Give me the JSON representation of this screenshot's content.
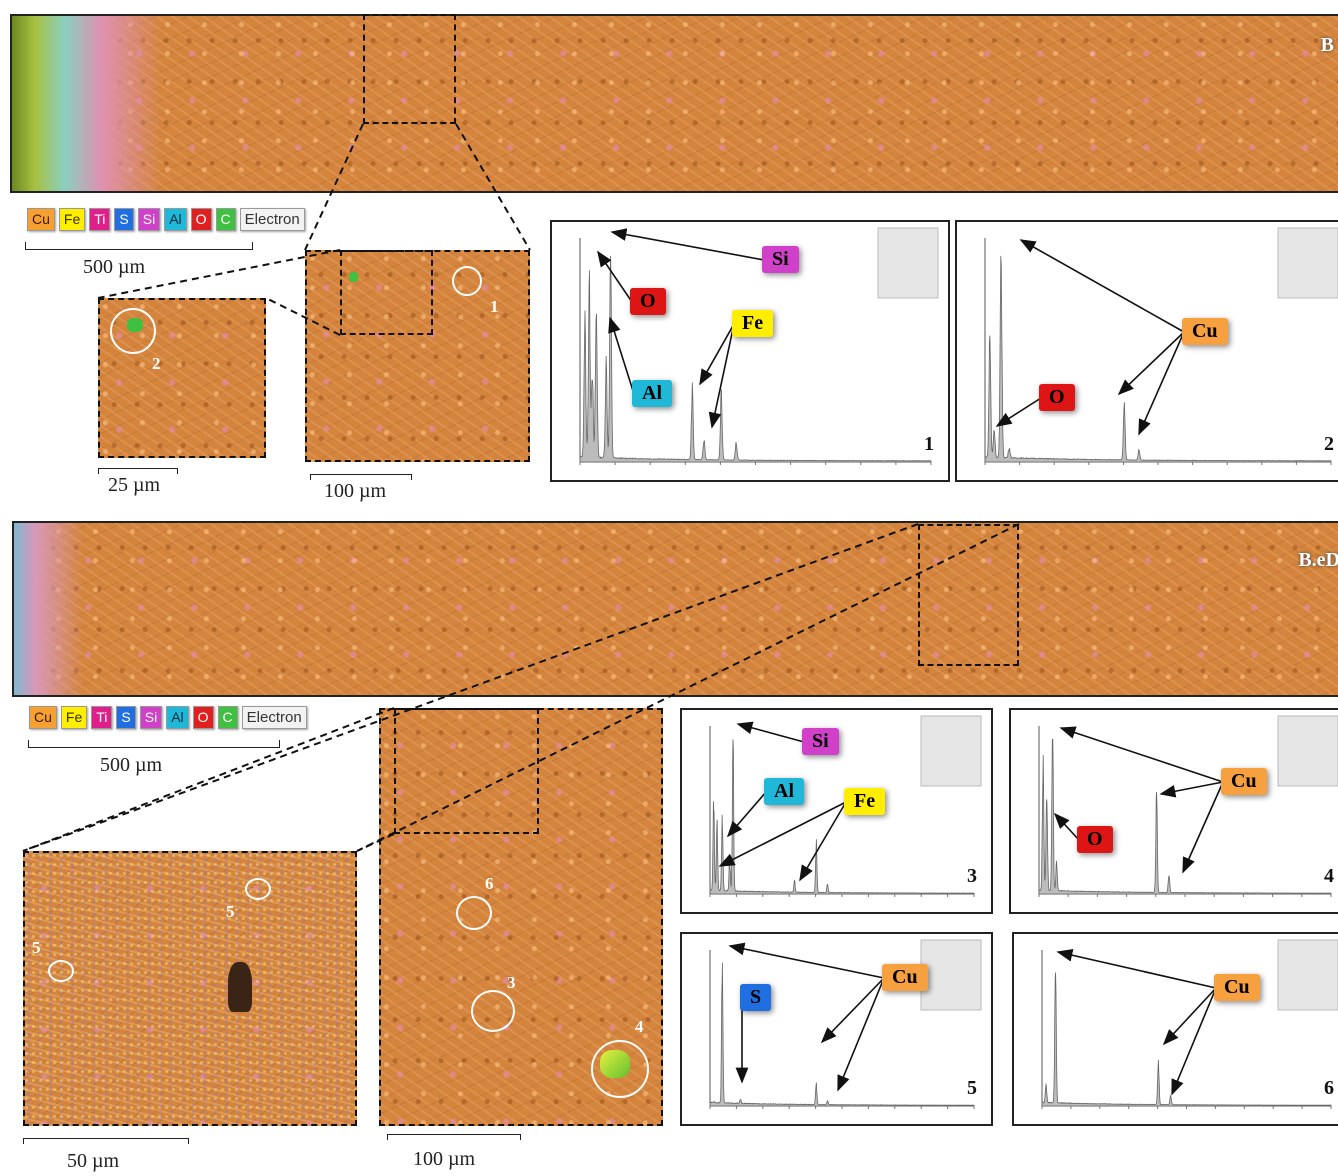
{
  "top": {
    "sample_label": "B",
    "legend": [
      {
        "el": "Cu",
        "bg": "#f5a030",
        "fg": "#3a1800"
      },
      {
        "el": "Fe",
        "bg": "#ffee00",
        "fg": "#3a3000"
      },
      {
        "el": "Ti",
        "bg": "#e0208a",
        "fg": "#ffffff"
      },
      {
        "el": "S",
        "bg": "#1f6fe0",
        "fg": "#ffffff"
      },
      {
        "el": "Si",
        "bg": "#d040c8",
        "fg": "#ffffff"
      },
      {
        "el": "Al",
        "bg": "#20b8d8",
        "fg": "#0a2a38"
      },
      {
        "el": "O",
        "bg": "#e02020",
        "fg": "#ffffff"
      },
      {
        "el": "C",
        "bg": "#40c040",
        "fg": "#ffffff"
      }
    ],
    "electron_label": "Electron",
    "scale_main": "500 µm",
    "scale_inset_small": "25 µm",
    "scale_inset_mid": "100 µm",
    "point_labels": [
      "2",
      "1"
    ]
  },
  "bottom": {
    "sample_label": "B.eD",
    "legend": [
      {
        "el": "Cu",
        "bg": "#f5a030",
        "fg": "#3a1800"
      },
      {
        "el": "Fe",
        "bg": "#ffee00",
        "fg": "#3a3000"
      },
      {
        "el": "Ti",
        "bg": "#e0208a",
        "fg": "#ffffff"
      },
      {
        "el": "S",
        "bg": "#1f6fe0",
        "fg": "#ffffff"
      },
      {
        "el": "Si",
        "bg": "#d040c8",
        "fg": "#ffffff"
      },
      {
        "el": "Al",
        "bg": "#20b8d8",
        "fg": "#0a2a38"
      },
      {
        "el": "O",
        "bg": "#e02020",
        "fg": "#ffffff"
      },
      {
        "el": "C",
        "bg": "#40c040",
        "fg": "#ffffff"
      }
    ],
    "electron_label": "Electron",
    "scale_main": "500 µm",
    "scale_inset_left": "50 µm",
    "scale_inset_right": "100 µm",
    "point_labels": [
      "5",
      "5",
      "6",
      "3",
      "4"
    ]
  },
  "tag_colors": {
    "Si": {
      "bg": "#d040c8",
      "fg": "#000000"
    },
    "O": {
      "bg": "#dd1515",
      "fg": "#000000"
    },
    "Fe": {
      "bg": "#ffee00",
      "fg": "#000000"
    },
    "Al": {
      "bg": "#20b8d8",
      "fg": "#000000"
    },
    "Cu": {
      "bg": "#f7a040",
      "fg": "#000000"
    },
    "S": {
      "bg": "#1f6fe0",
      "fg": "#000000"
    }
  },
  "spectra": [
    {
      "number": "1",
      "tags": [
        "Si",
        "O",
        "Fe",
        "Al"
      ],
      "peaks": [
        [
          0.28,
          20
        ],
        [
          0.53,
          25
        ],
        [
          0.7,
          13
        ],
        [
          0.93,
          21
        ],
        [
          1.49,
          14
        ],
        [
          1.74,
          30
        ],
        [
          6.4,
          10
        ],
        [
          7.06,
          3
        ],
        [
          8.05,
          10
        ],
        [
          8.9,
          2.5
        ]
      ]
    },
    {
      "number": "2",
      "tags": [
        "Cu",
        "O"
      ],
      "peaks": [
        [
          0.28,
          36
        ],
        [
          0.53,
          8
        ],
        [
          0.93,
          59
        ],
        [
          1.4,
          3
        ],
        [
          8.05,
          16
        ],
        [
          8.9,
          3
        ]
      ]
    },
    {
      "number": "3",
      "tags": [
        "Si",
        "Al",
        "Fe"
      ],
      "peaks": [
        [
          0.28,
          16
        ],
        [
          0.53,
          12
        ],
        [
          0.93,
          13
        ],
        [
          1.49,
          5
        ],
        [
          1.74,
          27
        ],
        [
          6.4,
          2
        ],
        [
          8.05,
          9
        ],
        [
          8.9,
          1.5
        ]
      ]
    },
    {
      "number": "4",
      "tags": [
        "Cu",
        "O"
      ],
      "peaks": [
        [
          0.28,
          30
        ],
        [
          0.53,
          23
        ],
        [
          0.93,
          35
        ],
        [
          1.2,
          6
        ],
        [
          8.05,
          22
        ],
        [
          8.9,
          4
        ]
      ]
    },
    {
      "number": "5",
      "tags": [
        "Cu",
        "S"
      ],
      "peaks": [
        [
          0.28,
          10
        ],
        [
          0.93,
          1500
        ],
        [
          2.31,
          40
        ],
        [
          8.05,
          220
        ],
        [
          8.9,
          40
        ]
      ]
    },
    {
      "number": "6",
      "tags": [
        "Cu",
        "Cu"
      ],
      "peaks": [
        [
          0.28,
          12
        ],
        [
          0.93,
          100
        ],
        [
          8.05,
          30
        ],
        [
          8.9,
          6
        ]
      ]
    }
  ]
}
